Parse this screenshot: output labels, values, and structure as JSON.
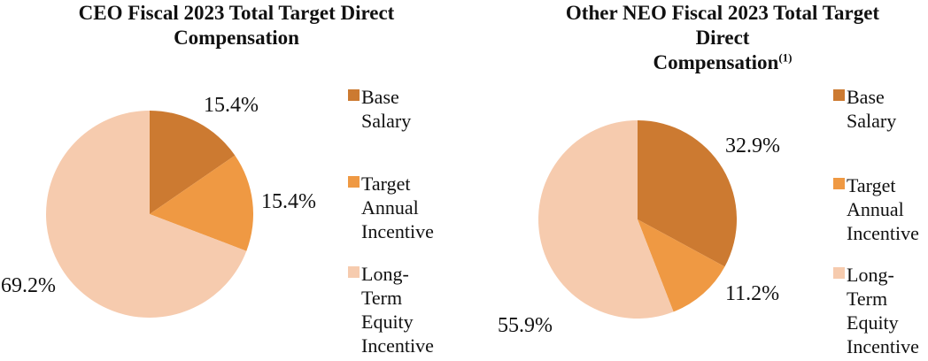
{
  "chart_data": [
    {
      "type": "pie",
      "title": "CEO Fiscal 2023 Total Target Direct Compensation",
      "title_lines": [
        "CEO Fiscal 2023 Total Target Direct",
        "Compensation"
      ],
      "title_superscript": "",
      "categories": [
        "Base Salary",
        "Target Annual Incentive",
        "Long-Term Equity Incentive"
      ],
      "values": [
        15.4,
        15.4,
        69.2
      ],
      "data_labels": [
        "15.4%",
        "15.4%",
        "69.2%"
      ],
      "colors": [
        "#cc7a31",
        "#ef9943",
        "#f6cbae"
      ],
      "start_angle": 0,
      "direction": "clockwise",
      "legend_position": "right",
      "legend_items": [
        {
          "lines": [
            "Base",
            "Salary"
          ]
        },
        {
          "lines": [
            "Target",
            "Annual",
            "Incentive"
          ]
        },
        {
          "lines": [
            "Long-",
            "Term",
            "Equity",
            "Incentive"
          ]
        }
      ]
    },
    {
      "type": "pie",
      "title": "Other NEO Fiscal 2023 Total Target Direct Compensation(1)",
      "title_lines": [
        "Other NEO Fiscal 2023 Total Target",
        "Direct",
        "Compensation"
      ],
      "title_superscript": "(1)",
      "categories": [
        "Base Salary",
        "Target Annual Incentive",
        "Long-Term Equity Incentive"
      ],
      "values": [
        32.9,
        11.2,
        55.9
      ],
      "data_labels": [
        "32.9%",
        "11.2%",
        "55.9%"
      ],
      "colors": [
        "#cc7a31",
        "#ef9943",
        "#f6cbae"
      ],
      "start_angle": 0,
      "direction": "clockwise",
      "legend_position": "right",
      "legend_items": [
        {
          "lines": [
            "Base",
            "Salary"
          ]
        },
        {
          "lines": [
            "Target",
            "Annual",
            "Incentive"
          ]
        },
        {
          "lines": [
            "Long-",
            "Term",
            "Equity",
            "Incentive"
          ]
        }
      ]
    }
  ]
}
